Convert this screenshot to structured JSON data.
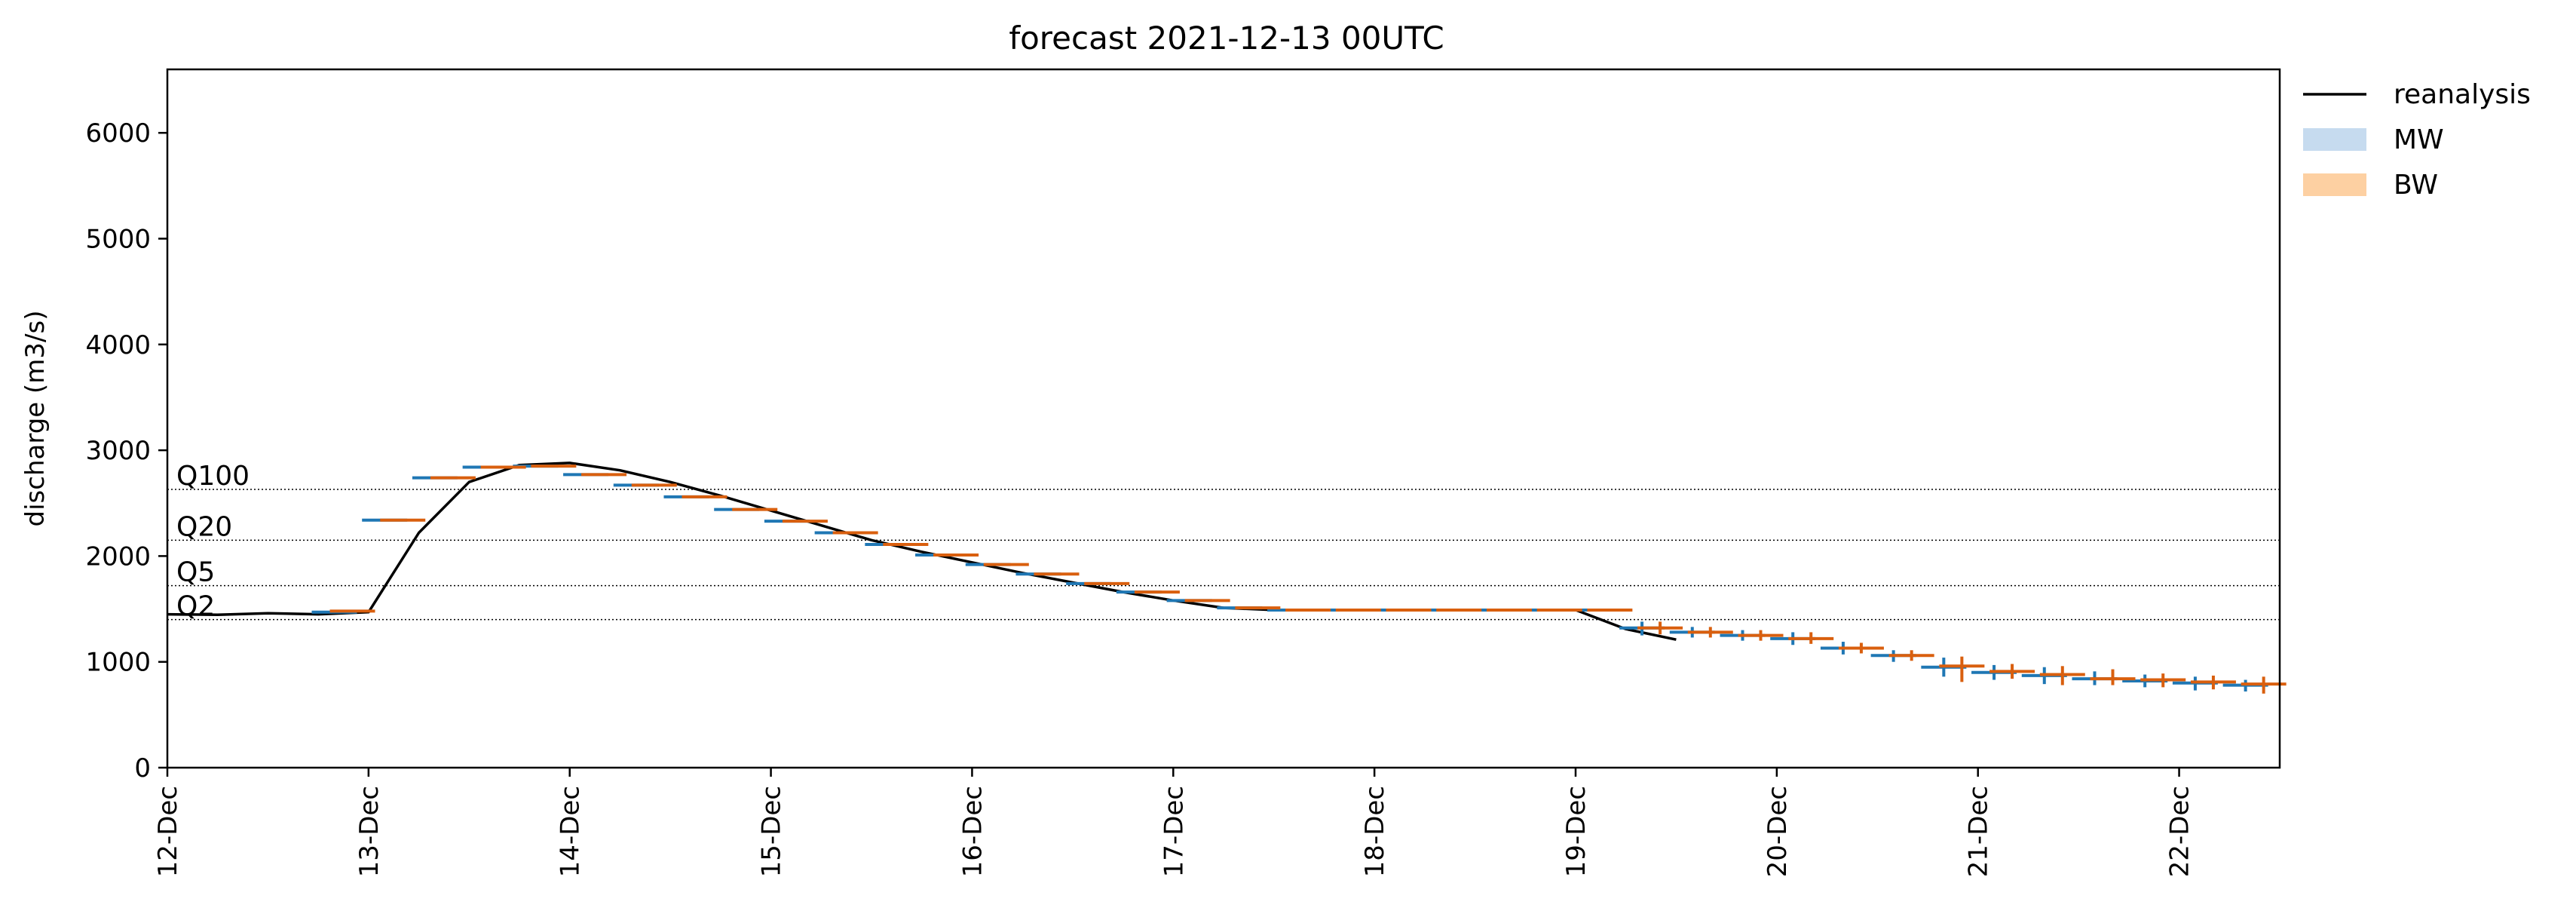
{
  "chart_data": {
    "type": "line",
    "title": "forecast 2021-12-13 00UTC",
    "ylabel": "discharge (m3/s)",
    "xlabel": "",
    "ylim": [
      0,
      6600
    ],
    "xlim": [
      0,
      10.5
    ],
    "yticks": [
      0,
      1000,
      2000,
      3000,
      4000,
      5000,
      6000
    ],
    "ytick_labels": [
      "0",
      "1000",
      "2000",
      "3000",
      "4000",
      "5000",
      "6000"
    ],
    "x_ticks": [
      0,
      1,
      2,
      3,
      4,
      5,
      6,
      7,
      8,
      9,
      10
    ],
    "x_tick_labels": [
      "12-Dec",
      "13-Dec",
      "14-Dec",
      "15-Dec",
      "16-Dec",
      "17-Dec",
      "18-Dec",
      "19-Dec",
      "20-Dec",
      "21-Dec",
      "22-Dec"
    ],
    "x_unit": "days from 12-Dec 00UTC",
    "grid": false,
    "legend_position": "outside-top-right",
    "legend": [
      {
        "label": "reanalysis",
        "kind": "line",
        "color": "#000000"
      },
      {
        "label": "MW",
        "kind": "patch",
        "color": "#c6dbef"
      },
      {
        "label": "BW",
        "kind": "patch",
        "color": "#fdd0a2"
      }
    ],
    "thresholds": [
      {
        "label": "Q100",
        "value": 2630
      },
      {
        "label": "Q20",
        "value": 2150
      },
      {
        "label": "Q5",
        "value": 1720
      },
      {
        "label": "Q2",
        "value": 1400
      }
    ],
    "series": [
      {
        "name": "reanalysis",
        "color": "#000000",
        "x": [
          0,
          0.25,
          0.5,
          0.75,
          1.0,
          1.25,
          1.5,
          1.75,
          2.0,
          2.25,
          2.5,
          2.75,
          3.0,
          3.25,
          3.5,
          3.75,
          4.0,
          4.25,
          4.5,
          4.75,
          5.0,
          5.25,
          5.5,
          5.75,
          6.0,
          6.25,
          6.5,
          6.75,
          7.0,
          7.25,
          7.5
        ],
        "y": [
          1450,
          1445,
          1460,
          1450,
          1470,
          2220,
          2700,
          2860,
          2880,
          2810,
          2700,
          2570,
          2430,
          2290,
          2150,
          2040,
          1940,
          1840,
          1750,
          1660,
          1580,
          1510,
          1490,
          1490,
          1490,
          1490,
          1490,
          1490,
          1490,
          1310,
          1210
        ]
      },
      {
        "name": "MW",
        "color": "#1f77b4",
        "x": [
          0.83,
          1.08,
          1.33,
          1.58,
          1.83,
          2.08,
          2.33,
          2.58,
          2.83,
          3.08,
          3.33,
          3.58,
          3.83,
          4.08,
          4.33,
          4.58,
          4.83,
          5.08,
          5.33,
          5.58,
          5.83,
          6.08,
          6.33,
          6.58,
          6.83,
          7.08,
          7.33,
          7.58,
          7.83,
          8.08,
          8.33,
          8.58,
          8.83,
          9.08,
          9.33,
          9.58,
          9.83,
          10.08,
          10.33
        ],
        "y": [
          1470,
          2340,
          2740,
          2840,
          2850,
          2770,
          2670,
          2560,
          2440,
          2330,
          2220,
          2110,
          2010,
          1920,
          1830,
          1740,
          1660,
          1580,
          1510,
          1490,
          1490,
          1490,
          1490,
          1490,
          1490,
          1490,
          1320,
          1280,
          1250,
          1220,
          1130,
          1060,
          950,
          900,
          870,
          840,
          820,
          800,
          780
        ],
        "y_low": [
          1470,
          2340,
          2740,
          2840,
          2850,
          2770,
          2670,
          2560,
          2440,
          2330,
          2220,
          2110,
          2010,
          1920,
          1830,
          1740,
          1660,
          1580,
          1510,
          1490,
          1490,
          1490,
          1490,
          1490,
          1490,
          1490,
          1250,
          1230,
          1200,
          1160,
          1070,
          1000,
          860,
          830,
          790,
          780,
          760,
          730,
          720
        ],
        "y_high": [
          1470,
          2340,
          2740,
          2840,
          2850,
          2770,
          2670,
          2560,
          2440,
          2330,
          2220,
          2110,
          2010,
          1920,
          1830,
          1740,
          1660,
          1580,
          1510,
          1490,
          1490,
          1490,
          1490,
          1490,
          1490,
          1490,
          1380,
          1330,
          1300,
          1280,
          1190,
          1110,
          1040,
          970,
          950,
          910,
          880,
          860,
          830
        ]
      },
      {
        "name": "BW",
        "color": "#d95f0e",
        "x": [
          0.92,
          1.17,
          1.42,
          1.67,
          1.92,
          2.17,
          2.42,
          2.67,
          2.92,
          3.17,
          3.42,
          3.67,
          3.92,
          4.17,
          4.42,
          4.67,
          4.92,
          5.17,
          5.42,
          5.67,
          5.92,
          6.17,
          6.42,
          6.67,
          6.92,
          7.17,
          7.42,
          7.67,
          7.92,
          8.17,
          8.42,
          8.67,
          8.92,
          9.17,
          9.42,
          9.67,
          9.92,
          10.17,
          10.42
        ],
        "y": [
          1480,
          2340,
          2740,
          2840,
          2850,
          2770,
          2670,
          2560,
          2440,
          2330,
          2220,
          2110,
          2010,
          1920,
          1830,
          1740,
          1660,
          1580,
          1510,
          1490,
          1490,
          1490,
          1490,
          1490,
          1490,
          1490,
          1320,
          1280,
          1250,
          1220,
          1130,
          1060,
          960,
          910,
          880,
          840,
          830,
          810,
          790
        ],
        "y_low": [
          1480,
          2340,
          2740,
          2840,
          2850,
          2770,
          2670,
          2560,
          2440,
          2330,
          2220,
          2110,
          2010,
          1920,
          1830,
          1740,
          1660,
          1580,
          1510,
          1490,
          1490,
          1490,
          1490,
          1490,
          1490,
          1490,
          1260,
          1230,
          1200,
          1170,
          1080,
          1010,
          810,
          840,
          780,
          780,
          760,
          740,
          700
        ],
        "y_high": [
          1480,
          2340,
          2740,
          2840,
          2850,
          2770,
          2670,
          2560,
          2440,
          2330,
          2220,
          2110,
          2010,
          1920,
          1830,
          1740,
          1660,
          1580,
          1510,
          1490,
          1490,
          1490,
          1490,
          1490,
          1490,
          1490,
          1380,
          1330,
          1300,
          1280,
          1180,
          1110,
          1050,
          980,
          960,
          930,
          890,
          870,
          860
        ]
      }
    ]
  }
}
